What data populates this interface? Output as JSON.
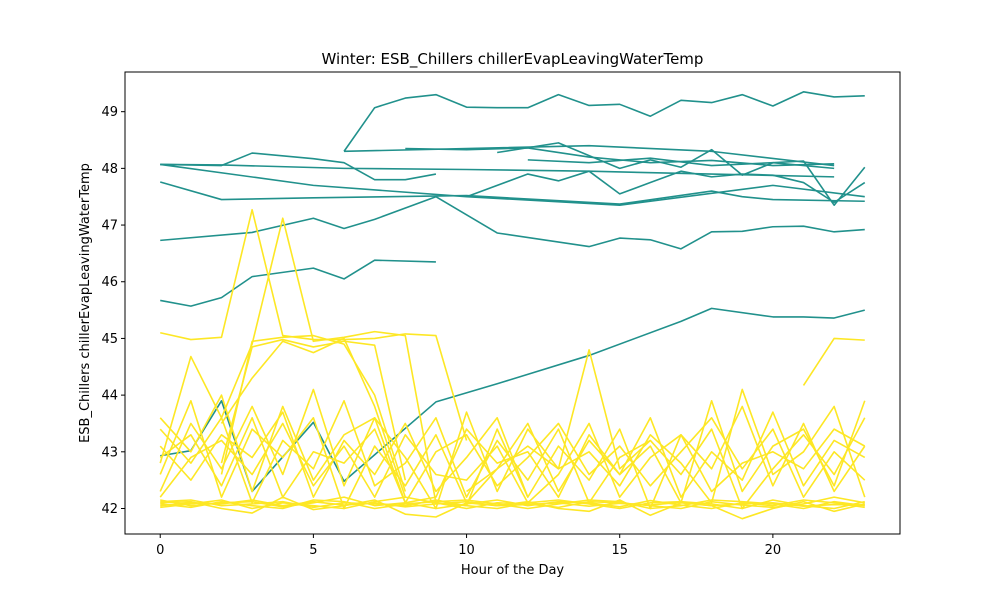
{
  "chart_data": {
    "type": "line",
    "title": "Winter: ESB_Chillers chillerEvapLeavingWaterTemp",
    "xlabel": "Hour of the Day",
    "ylabel": "ESB_Chillers chillerEvapLeavingWaterTemp",
    "xlim": [
      -1.15,
      24.15
    ],
    "ylim": [
      41.55,
      49.7
    ],
    "xticks": [
      0,
      5,
      10,
      15,
      20
    ],
    "yticks": [
      42,
      43,
      44,
      45,
      46,
      47,
      48,
      49
    ],
    "grid": false,
    "legend": "none",
    "colors": {
      "group_a": "#21918c",
      "group_b": "#fde725"
    },
    "series": [
      {
        "group": "group_a",
        "x": [
          6,
          7,
          8,
          9,
          10,
          11,
          12,
          13,
          14,
          15,
          16,
          17,
          18,
          19,
          20,
          21,
          22,
          23
        ],
        "values": [
          48.3,
          49.07,
          49.24,
          49.3,
          49.08,
          49.07,
          49.07,
          49.3,
          49.11,
          49.13,
          48.92,
          49.2,
          49.16,
          49.3,
          49.1,
          49.35,
          49.26,
          49.28
        ]
      },
      {
        "group": "group_a",
        "x": [
          6,
          10,
          14,
          18,
          22
        ],
        "values": [
          48.3,
          48.35,
          48.4,
          48.3,
          48.05
        ]
      },
      {
        "group": "group_a",
        "x": [
          8,
          10,
          12,
          14,
          16,
          18,
          20,
          22
        ],
        "values": [
          48.35,
          48.33,
          48.36,
          48.2,
          48.1,
          48.14,
          48.05,
          48.08
        ]
      },
      {
        "group": "group_a",
        "x": [
          11,
          13,
          15,
          16,
          17,
          18,
          19,
          20,
          21,
          22,
          23
        ],
        "values": [
          48.28,
          48.45,
          48.0,
          48.15,
          48.02,
          48.33,
          47.88,
          48.1,
          48.13,
          47.35,
          48.02
        ]
      },
      {
        "group": "group_a",
        "x": [
          12,
          14,
          16,
          18,
          20,
          22
        ],
        "values": [
          48.15,
          48.1,
          48.18,
          48.05,
          48.1,
          48.0
        ]
      },
      {
        "group": "group_a",
        "x": [
          0,
          2,
          3,
          5,
          6,
          7,
          8,
          9
        ],
        "values": [
          48.07,
          48.05,
          48.27,
          48.17,
          48.1,
          47.8,
          47.8,
          47.9
        ]
      },
      {
        "group": "group_a",
        "x": [
          0,
          5,
          10,
          15,
          20,
          23
        ],
        "values": [
          48.07,
          47.7,
          47.5,
          47.35,
          47.7,
          47.5
        ]
      },
      {
        "group": "group_a",
        "x": [
          0,
          2,
          6,
          10,
          14,
          18,
          22
        ],
        "values": [
          48.07,
          48.06,
          48.0,
          47.98,
          47.95,
          47.9,
          47.85
        ]
      },
      {
        "group": "group_a",
        "x": [
          0,
          2,
          5,
          10,
          15,
          18,
          19,
          20,
          23
        ],
        "values": [
          47.76,
          47.45,
          47.48,
          47.52,
          47.37,
          47.6,
          47.5,
          47.45,
          47.42
        ]
      },
      {
        "group": "group_a",
        "x": [
          10,
          12,
          13,
          14,
          15,
          16,
          17,
          18,
          19,
          20,
          21,
          22,
          23
        ],
        "values": [
          47.5,
          47.9,
          47.78,
          47.95,
          47.55,
          47.75,
          47.95,
          47.85,
          47.9,
          47.88,
          47.75,
          47.4,
          47.75
        ]
      },
      {
        "group": "group_a",
        "x": [
          0,
          3,
          5,
          6,
          7,
          9,
          11,
          14,
          15,
          16,
          17,
          18,
          19,
          20,
          21,
          22,
          23
        ],
        "values": [
          46.73,
          46.87,
          47.12,
          46.94,
          47.1,
          47.5,
          46.86,
          46.62,
          46.77,
          46.74,
          46.58,
          46.88,
          46.89,
          46.97,
          46.98,
          46.88,
          46.92
        ]
      },
      {
        "group": "group_a",
        "x": [
          0,
          1,
          2,
          3,
          5,
          6,
          7,
          9
        ],
        "values": [
          45.67,
          45.57,
          45.72,
          46.09,
          46.24,
          46.05,
          46.38,
          46.35
        ]
      },
      {
        "group": "group_a",
        "x": [
          0,
          1,
          2,
          3,
          5,
          6,
          9,
          11,
          14,
          17,
          18,
          20,
          21,
          22,
          23
        ],
        "values": [
          42.93,
          43.02,
          43.9,
          42.3,
          43.52,
          42.48,
          43.88,
          44.2,
          44.7,
          45.3,
          45.53,
          45.38,
          45.38,
          45.36,
          45.5
        ]
      },
      {
        "group": "group_b",
        "x": [
          0,
          1,
          2,
          3,
          4,
          5,
          6,
          7,
          8,
          9,
          10
        ],
        "values": [
          45.1,
          44.98,
          45.02,
          47.27,
          45.05,
          44.98,
          44.98,
          45.0,
          45.08,
          45.05,
          43.2
        ]
      },
      {
        "group": "group_b",
        "x": [
          0,
          1,
          2,
          3,
          4,
          5,
          6,
          7,
          8,
          9,
          10,
          11,
          12
        ],
        "values": [
          42.8,
          44.68,
          43.6,
          44.9,
          47.12,
          44.95,
          45.02,
          45.12,
          45.05,
          42.1,
          42.05,
          43.4,
          42.2
        ]
      },
      {
        "group": "group_b",
        "x": [
          21,
          22,
          23
        ],
        "values": [
          44.17,
          45.0,
          44.97
        ]
      },
      {
        "group": "group_b",
        "x": [
          2,
          3,
          4,
          5,
          6,
          7,
          8
        ],
        "values": [
          42.8,
          44.85,
          44.98,
          44.85,
          44.95,
          44.88,
          42.5
        ]
      },
      {
        "group": "group_b",
        "x": [
          2,
          3,
          4,
          5,
          6,
          7,
          8
        ],
        "values": [
          43.5,
          44.3,
          44.95,
          44.75,
          45.0,
          43.8,
          42.2
        ]
      },
      {
        "group": "group_b",
        "x": [
          2,
          3,
          4,
          5,
          6,
          7,
          8
        ],
        "values": [
          42.6,
          44.95,
          45.02,
          45.05,
          44.9,
          44.0,
          42.3
        ]
      },
      {
        "group": "group_b",
        "x": [
          10,
          12,
          13,
          14,
          15,
          16
        ],
        "values": [
          42.3,
          43.1,
          42.7,
          44.8,
          42.7,
          43.2
        ]
      },
      {
        "group": "group_b",
        "x": [
          0,
          1,
          2,
          3,
          4,
          5,
          6,
          7,
          8,
          9,
          10,
          11,
          12,
          13,
          14,
          15,
          16,
          17,
          18,
          19,
          20,
          21,
          22,
          23
        ],
        "values": [
          43.6,
          43.0,
          44.0,
          42.3,
          43.8,
          42.5,
          43.3,
          43.6,
          42.1,
          42.2,
          43.4,
          42.8,
          43.0,
          42.2,
          43.3,
          42.6,
          43.1,
          42.1,
          43.9,
          42.3,
          43.1,
          43.4,
          42.4,
          43.9
        ]
      },
      {
        "group": "group_b",
        "x": [
          0,
          1,
          2,
          3,
          4,
          5,
          6,
          7,
          8,
          9,
          10,
          11,
          12,
          13,
          14,
          15,
          16,
          17,
          18,
          19,
          20,
          21,
          22,
          23
        ],
        "values": [
          42.3,
          43.5,
          42.7,
          43.8,
          42.6,
          44.1,
          42.4,
          43.6,
          42.9,
          42.0,
          43.7,
          42.3,
          43.4,
          42.7,
          43.0,
          42.4,
          43.3,
          42.8,
          42.1,
          44.1,
          42.6,
          43.0,
          43.8,
          42.2
        ]
      },
      {
        "group": "group_b",
        "x": [
          0,
          1,
          2,
          3,
          4,
          5,
          6,
          7,
          8,
          9,
          10,
          11,
          12,
          13,
          14,
          15,
          16,
          17,
          18,
          19,
          20,
          21,
          22,
          23
        ],
        "values": [
          43.1,
          42.5,
          43.3,
          42.9,
          43.7,
          42.2,
          43.2,
          42.6,
          43.5,
          42.3,
          42.9,
          43.6,
          42.2,
          43.1,
          42.5,
          43.4,
          42.0,
          43.3,
          42.7,
          43.8,
          42.4,
          43.5,
          42.3,
          43.1
        ]
      },
      {
        "group": "group_b",
        "x": [
          0,
          1,
          2,
          3,
          4,
          5,
          6,
          7,
          8,
          9,
          10,
          11,
          12,
          13,
          14,
          15,
          16,
          17,
          18,
          19,
          20,
          21,
          22,
          23
        ],
        "values": [
          42.6,
          43.9,
          42.2,
          43.4,
          42.9,
          43.6,
          42.0,
          43.1,
          42.4,
          43.3,
          42.1,
          42.7,
          43.5,
          42.3,
          43.2,
          42.6,
          43.6,
          42.2,
          43.0,
          42.5,
          43.7,
          42.4,
          43.2,
          42.9
        ]
      },
      {
        "group": "group_b",
        "x": [
          0,
          1,
          2,
          3,
          4,
          5,
          6,
          7,
          8,
          9,
          10,
          11,
          12,
          13,
          14,
          15,
          16,
          17,
          18,
          19,
          20,
          21,
          22,
          23
        ],
        "values": [
          43.4,
          42.8,
          43.6,
          42.1,
          43.2,
          42.7,
          43.9,
          42.4,
          42.8,
          43.6,
          42.2,
          43.2,
          42.5,
          43.4,
          42.1,
          42.9,
          43.2,
          42.6,
          43.4,
          42.0,
          42.7,
          43.3,
          42.6,
          43.6
        ]
      },
      {
        "group": "group_b",
        "x": [
          0,
          1,
          2,
          3,
          4,
          5,
          6,
          7,
          8,
          9,
          10,
          11,
          12,
          13,
          14,
          15,
          16,
          17,
          18,
          19,
          20,
          21,
          22,
          23
        ],
        "values": [
          42.9,
          43.3,
          42.4,
          43.6,
          42.2,
          43.0,
          42.8,
          43.4,
          42.1,
          43.0,
          43.3,
          42.4,
          42.9,
          43.5,
          42.6,
          43.1,
          42.4,
          43.0,
          43.6,
          42.7,
          43.4,
          42.2,
          43.0,
          42.5
        ]
      },
      {
        "group": "group_b",
        "x": [
          0,
          1,
          2,
          3,
          4,
          5,
          6,
          7,
          8,
          9,
          10,
          11,
          12,
          13,
          14,
          15,
          16,
          17,
          18,
          19,
          20,
          21,
          22,
          23
        ],
        "values": [
          42.2,
          42.9,
          43.2,
          42.6,
          43.5,
          42.4,
          43.1,
          42.2,
          43.3,
          42.6,
          42.5,
          43.1,
          42.1,
          42.6,
          43.5,
          42.2,
          42.9,
          43.3,
          42.3,
          42.8,
          43.0,
          42.7,
          43.4,
          43.1
        ]
      },
      {
        "group": "group_b",
        "x": [
          0,
          1,
          2,
          3,
          4,
          5,
          6,
          7,
          8,
          9,
          10,
          11,
          12,
          13,
          14,
          15,
          16,
          17,
          18,
          19,
          20,
          21,
          22,
          23
        ],
        "values": [
          42.05,
          42.1,
          42.08,
          42.15,
          42.05,
          42.12,
          42.06,
          42.1,
          42.03,
          42.08,
          42.12,
          42.05,
          42.07,
          42.1,
          42.04,
          42.09,
          42.06,
          42.11,
          42.05,
          42.08,
          42.1,
          42.04,
          42.07,
          42.06
        ]
      },
      {
        "group": "group_b",
        "x": [
          0,
          1,
          2,
          3,
          4,
          5,
          6,
          7,
          8,
          9,
          10,
          11,
          12,
          13,
          14,
          15,
          16,
          17,
          18,
          19,
          20,
          21,
          22,
          23
        ],
        "values": [
          42.1,
          42.12,
          42.0,
          41.92,
          42.2,
          41.98,
          42.05,
          42.15,
          41.9,
          41.85,
          42.1,
          42.05,
          42.12,
          42.0,
          41.95,
          42.15,
          41.88,
          42.1,
          42.05,
          41.82,
          42.0,
          42.12,
          41.95,
          42.08
        ]
      },
      {
        "group": "group_b",
        "x": [
          0,
          1,
          2,
          3,
          4,
          5,
          6,
          7,
          8,
          9,
          10,
          11,
          12,
          13,
          14,
          15,
          16,
          17,
          18,
          19,
          20,
          21,
          22,
          23
        ],
        "values": [
          42.15,
          42.05,
          42.1,
          42.12,
          42.03,
          42.1,
          42.2,
          42.05,
          42.1,
          42.0,
          42.08,
          42.15,
          42.05,
          42.12,
          42.1,
          42.03,
          42.14,
          42.06,
          42.0,
          42.1,
          42.05,
          42.15,
          42.1,
          42.02
        ]
      },
      {
        "group": "group_b",
        "x": [
          0,
          1,
          2,
          3,
          4,
          5,
          6,
          7,
          8,
          9,
          10,
          11,
          12,
          13,
          14,
          15,
          16,
          17,
          18,
          19,
          20,
          21,
          22,
          23
        ],
        "values": [
          42.02,
          42.08,
          42.15,
          42.0,
          42.1,
          42.05,
          42.0,
          42.12,
          42.2,
          42.1,
          42.0,
          42.1,
          42.08,
          42.02,
          42.12,
          42.1,
          42.05,
          42.0,
          42.12,
          42.06,
          42.02,
          42.08,
          42.2,
          42.1
        ]
      },
      {
        "group": "group_b",
        "x": [
          0,
          1,
          2,
          3,
          4,
          5,
          6,
          7,
          8,
          9,
          10,
          11,
          12,
          13,
          14,
          15,
          16,
          17,
          18,
          19,
          20,
          21,
          22,
          23
        ],
        "values": [
          42.12,
          42.15,
          42.05,
          42.08,
          42.12,
          42.02,
          42.1,
          42.08,
          42.05,
          42.15,
          42.05,
          42.0,
          42.1,
          42.15,
          42.08,
          42.0,
          42.1,
          42.12,
          42.08,
          42.0,
          42.15,
          42.05,
          42.0,
          42.12
        ]
      },
      {
        "group": "group_b",
        "x": [
          0,
          1,
          2,
          3,
          4,
          5,
          6,
          7,
          8,
          9,
          10,
          11,
          12,
          13,
          14,
          15,
          16,
          17,
          18,
          19,
          20,
          21,
          22,
          23
        ],
        "values": [
          42.08,
          42.02,
          42.12,
          42.05,
          42.0,
          42.15,
          42.12,
          42.0,
          42.08,
          42.12,
          42.15,
          42.08,
          42.0,
          42.08,
          42.15,
          42.12,
          42.0,
          42.05,
          42.15,
          42.12,
          42.08,
          42.0,
          42.12,
          42.05
        ]
      }
    ]
  }
}
